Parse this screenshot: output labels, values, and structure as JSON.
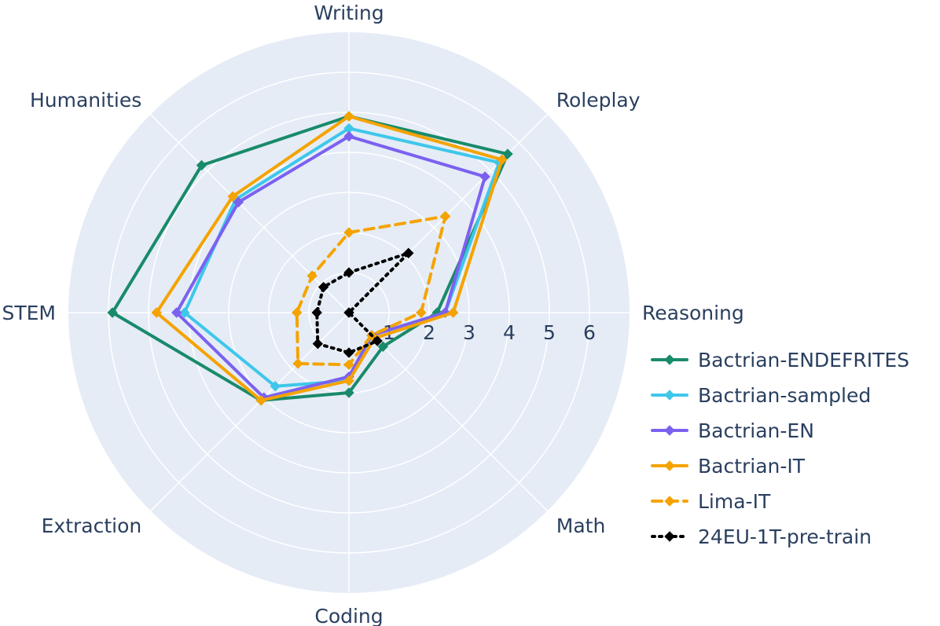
{
  "chart_data": {
    "type": "radar",
    "title": "",
    "categories": [
      "Writing",
      "Roleplay",
      "Reasoning",
      "Math",
      "Coding",
      "Extraction",
      "STEM",
      "Humanities"
    ],
    "radial_ticks": [
      "1",
      "2",
      "3",
      "4",
      "5",
      "6"
    ],
    "rlim": [
      0,
      7
    ],
    "grid": true,
    "legend_position": "right-bottom",
    "colors": {
      "background": "#e5ecf6",
      "grid": "#ffffff",
      "text": "#2a3f5f"
    },
    "series": [
      {
        "name": "Bactrian-ENDEFRITES",
        "color": "#198a6a",
        "dash": "solid",
        "values": [
          4.9,
          5.6,
          2.2,
          1.2,
          2.0,
          3.1,
          5.9,
          5.2
        ]
      },
      {
        "name": "Bactrian-sampled",
        "color": "#3ec7ea",
        "dash": "solid",
        "values": [
          4.6,
          5.3,
          2.4,
          0.8,
          1.7,
          2.6,
          4.1,
          4.0
        ]
      },
      {
        "name": "Bactrian-EN",
        "color": "#7b61f0",
        "dash": "solid",
        "values": [
          4.4,
          4.8,
          2.4,
          0.8,
          1.6,
          3.0,
          4.3,
          3.9
        ]
      },
      {
        "name": "Bactrian-IT",
        "color": "#f5a300",
        "dash": "solid",
        "values": [
          4.9,
          5.4,
          2.6,
          0.9,
          1.7,
          3.1,
          4.8,
          4.1
        ]
      },
      {
        "name": "Lima-IT",
        "color": "#f5a300",
        "dash": "dashed",
        "values": [
          2.0,
          3.4,
          1.8,
          0.8,
          1.3,
          1.8,
          1.3,
          1.3
        ]
      },
      {
        "name": "24EU-1T-pre-train",
        "color": "#000000",
        "dash": "dotted",
        "values": [
          1.0,
          2.1,
          0.0,
          1.0,
          1.0,
          1.1,
          0.8,
          0.9
        ]
      }
    ]
  }
}
